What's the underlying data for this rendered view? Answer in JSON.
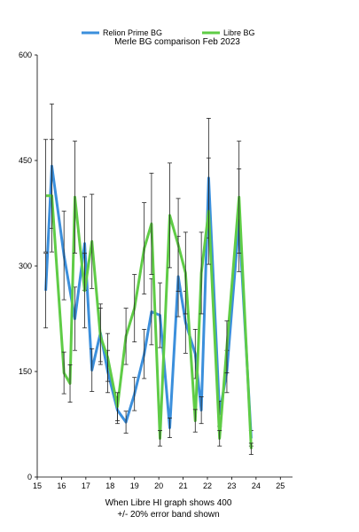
{
  "chart_data": {
    "type": "line",
    "title": "Merle BG comparison Feb 2023",
    "xlabel_lines": [
      "When Libre HI graph shows 400",
      "+/- 20% error band shown"
    ],
    "ylabel": "",
    "ylim": [
      0,
      600
    ],
    "y_ticks": [
      0,
      150,
      300,
      450,
      600
    ],
    "x_range": [
      15,
      25.5
    ],
    "x_tick_labels": [
      "15",
      "16",
      "17",
      "18",
      "19",
      "20",
      "21",
      "22",
      "23",
      "24",
      "25"
    ],
    "grid": false,
    "legend_position": "top",
    "series": [
      {
        "name": "Relion Prime BG",
        "color": "#3b8fdc",
        "x": [
          15.35,
          15.6,
          16.1,
          16.55,
          16.95,
          17.25,
          17.6,
          17.9,
          18.3,
          18.65,
          19.0,
          19.4,
          19.7,
          20.05,
          20.45,
          20.8,
          21.1,
          21.5,
          21.75,
          22.05,
          22.5,
          22.8,
          23.3,
          23.8,
          24.1,
          24.5,
          24.9,
          25.35
        ],
        "values": [
          265,
          442,
          315,
          225,
          332,
          152,
          205,
          150,
          95,
          78,
          118,
          175,
          235,
          230,
          70,
          285,
          220,
          175,
          95,
          425,
          90,
          150,
          365,
          55,
          null,
          null,
          null,
          null
        ]
      },
      {
        "name": "Libre BG",
        "color": "#5fcc46",
        "x": [
          15.35,
          15.6,
          16.1,
          16.35,
          16.55,
          16.95,
          17.25,
          17.6,
          17.9,
          18.3,
          18.65,
          19.0,
          19.4,
          19.7,
          20.05,
          20.45,
          20.8,
          21.1,
          21.5,
          21.75,
          22.05,
          22.5,
          22.8,
          23.3,
          23.8,
          24.1,
          24.5,
          24.9
        ],
        "values": [
          400,
          400,
          148,
          133,
          398,
          265,
          335,
          200,
          170,
          100,
          200,
          240,
          325,
          360,
          55,
          372,
          330,
          290,
          80,
          290,
          378,
          55,
          185,
          398,
          40,
          null,
          null,
          null
        ]
      }
    ]
  }
}
